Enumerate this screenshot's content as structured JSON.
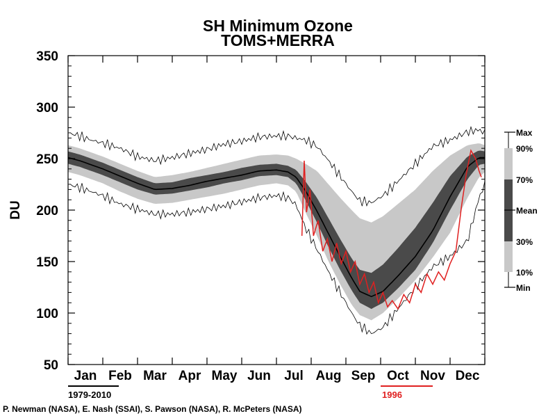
{
  "chart_data": {
    "type": "area",
    "title": "SH Minimum Ozone",
    "subtitle": "TOMS+MERRA",
    "xlabel": "",
    "ylabel": "DU",
    "ylim": [
      50,
      350
    ],
    "yticks": [
      50,
      100,
      150,
      200,
      250,
      300,
      350
    ],
    "xlim": [
      0,
      360
    ],
    "categories": [
      "Jan",
      "Feb",
      "Mar",
      "Apr",
      "May",
      "Jun",
      "Jul",
      "Aug",
      "Sep",
      "Oct",
      "Nov",
      "Dec"
    ],
    "grid": false,
    "legend": {
      "placement": "right",
      "entries": [
        "Max",
        "90%",
        "70%",
        "Mean",
        "30%",
        "10%",
        "Min"
      ]
    },
    "period_label": "1979-2010",
    "highlight_label": "1996",
    "colors": {
      "band_10_90": "#c8c8c8",
      "band_30_70": "#4a4a4a",
      "mean": "#000000",
      "extremes": "#000000",
      "year": "#e02020"
    },
    "series_knots": {
      "x": [
        0,
        10,
        20,
        30,
        45,
        60,
        75,
        90,
        105,
        120,
        135,
        150,
        165,
        180,
        190,
        197,
        205,
        215,
        225,
        235,
        245,
        252,
        262,
        272,
        285,
        300,
        315,
        330,
        345,
        355,
        360
      ],
      "min": [
        225,
        222,
        218,
        214,
        206,
        201,
        196,
        196,
        198,
        201,
        204,
        208,
        212,
        214,
        212,
        205,
        183,
        162,
        140,
        120,
        100,
        88,
        80,
        86,
        104,
        125,
        145,
        155,
        170,
        212,
        225
      ],
      "p10": [
        237,
        234,
        230,
        226,
        218,
        211,
        206,
        207,
        210,
        213,
        216,
        220,
        224,
        226,
        224,
        218,
        198,
        175,
        150,
        128,
        108,
        98,
        93,
        100,
        114,
        132,
        154,
        178,
        212,
        232,
        237
      ],
      "p30": [
        245,
        242,
        238,
        234,
        227,
        220,
        215,
        216,
        219,
        222,
        226,
        229,
        233,
        234,
        232,
        226,
        210,
        188,
        164,
        142,
        122,
        110,
        104,
        110,
        124,
        142,
        168,
        200,
        230,
        244,
        245
      ],
      "mean": [
        251,
        248,
        244,
        240,
        233,
        226,
        220,
        221,
        224,
        228,
        231,
        234,
        238,
        239,
        237,
        232,
        219,
        199,
        177,
        155,
        134,
        121,
        116,
        121,
        136,
        155,
        180,
        213,
        242,
        251,
        251
      ],
      "p70": [
        257,
        254,
        250,
        246,
        239,
        232,
        226,
        227,
        231,
        234,
        237,
        241,
        244,
        245,
        243,
        239,
        228,
        212,
        192,
        172,
        153,
        142,
        139,
        147,
        163,
        183,
        207,
        233,
        252,
        258,
        257
      ],
      "p90": [
        263,
        260,
        256,
        252,
        245,
        238,
        232,
        234,
        237,
        241,
        245,
        249,
        253,
        254,
        253,
        250,
        245,
        238,
        225,
        212,
        200,
        192,
        188,
        194,
        206,
        220,
        238,
        253,
        263,
        265,
        263
      ],
      "max": [
        275,
        272,
        268,
        265,
        260,
        252,
        248,
        251,
        255,
        259,
        264,
        267,
        271,
        272,
        272,
        270,
        268,
        262,
        248,
        233,
        218,
        209,
        207,
        214,
        228,
        245,
        262,
        268,
        276,
        278,
        275
      ]
    },
    "series_1996": {
      "name": "1996",
      "x": [
        202,
        204,
        206,
        209,
        212,
        216,
        220,
        224,
        228,
        232,
        236,
        240,
        244,
        248,
        252,
        256,
        260,
        264,
        268,
        272,
        276,
        280,
        285,
        290,
        295,
        300,
        305,
        310,
        315,
        320,
        325,
        330,
        335,
        340,
        344,
        348,
        352,
        355,
        357
      ],
      "y": [
        175,
        248,
        198,
        220,
        175,
        190,
        160,
        172,
        150,
        168,
        148,
        160,
        140,
        150,
        128,
        138,
        120,
        130,
        110,
        120,
        106,
        112,
        104,
        118,
        110,
        128,
        120,
        138,
        128,
        140,
        132,
        148,
        160,
        205,
        235,
        258,
        250,
        238,
        232
      ]
    }
  },
  "credits": "P. Newman (NASA), E. Nash (SSAI), S. Pawson (NASA), R. McPeters (NASA)"
}
